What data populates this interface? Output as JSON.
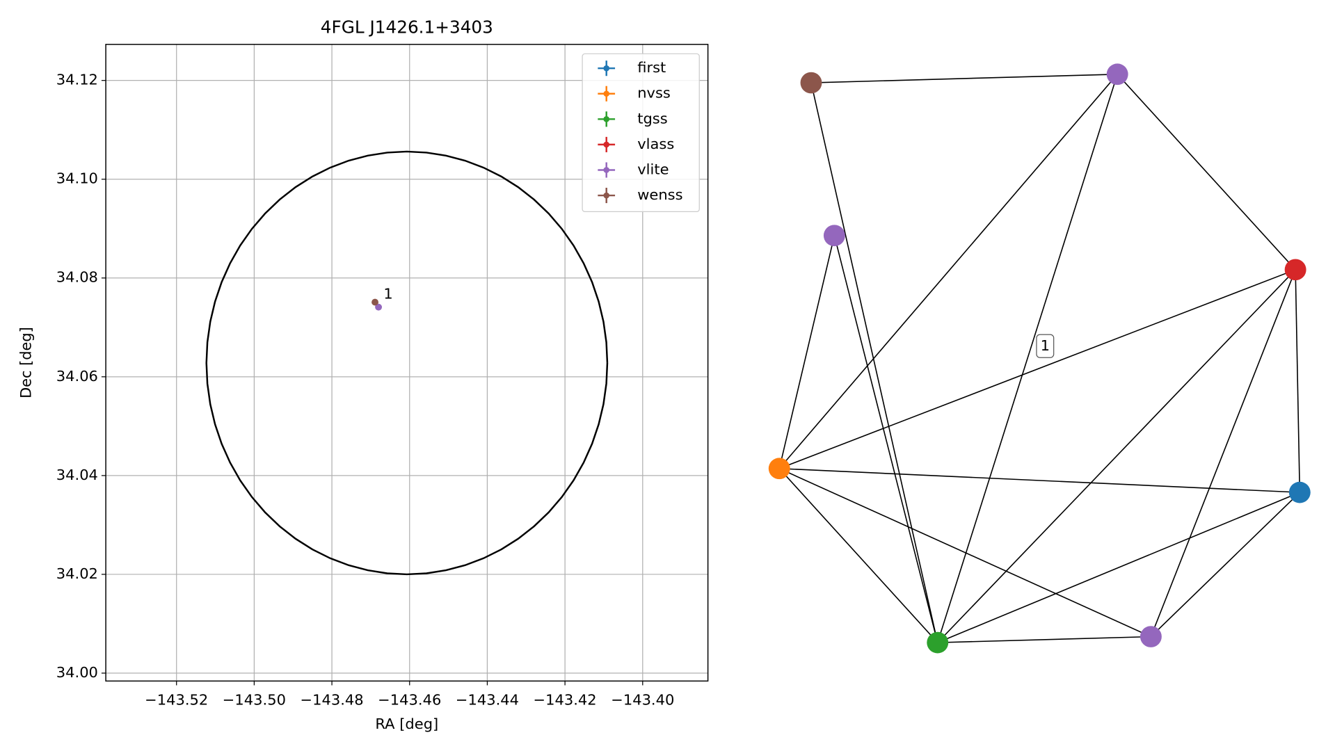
{
  "chart_data": {
    "type": "scatter",
    "title": "4FGL J1426.1+3403",
    "xlabel": "RA [deg]",
    "ylabel": "Dec [deg]",
    "xlim": [
      -143.5382,
      -143.3832
    ],
    "ylim": [
      33.9984,
      34.1273
    ],
    "xticks": [
      {
        "value": -143.52,
        "label": "−143.52"
      },
      {
        "value": -143.5,
        "label": "−143.50"
      },
      {
        "value": -143.48,
        "label": "−143.48"
      },
      {
        "value": -143.46,
        "label": "−143.46"
      },
      {
        "value": -143.44,
        "label": "−143.44"
      },
      {
        "value": -143.42,
        "label": "−143.42"
      },
      {
        "value": -143.4,
        "label": "−143.40"
      }
    ],
    "yticks": [
      {
        "value": 34.0,
        "label": "34.00"
      },
      {
        "value": 34.02,
        "label": "34.02"
      },
      {
        "value": 34.04,
        "label": "34.04"
      },
      {
        "value": 34.06,
        "label": "34.06"
      },
      {
        "value": 34.08,
        "label": "34.08"
      },
      {
        "value": 34.1,
        "label": "34.10"
      },
      {
        "value": 34.12,
        "label": "34.12"
      }
    ],
    "grid": true,
    "legend": "upper right",
    "circle": {
      "center": [
        -143.4607,
        34.0628
      ],
      "rx": 0.0516,
      "ry": 0.0428,
      "color": "#000000"
    },
    "series": [
      {
        "name": "first",
        "color": "#1f77b4",
        "x": [],
        "y": []
      },
      {
        "name": "nvss",
        "color": "#ff7f0e",
        "x": [],
        "y": []
      },
      {
        "name": "tgss",
        "color": "#2ca02c",
        "x": [],
        "y": []
      },
      {
        "name": "vlass",
        "color": "#d62728",
        "x": [],
        "y": []
      },
      {
        "name": "vlite",
        "color": "#9467bd",
        "x": [
          -143.468
        ],
        "y": [
          34.0741
        ]
      },
      {
        "name": "wenss",
        "color": "#8c564b",
        "x": [
          -143.4689
        ],
        "y": [
          34.0751
        ]
      }
    ],
    "annotation": "1"
  },
  "graph": {
    "edge_label": "1"
  }
}
